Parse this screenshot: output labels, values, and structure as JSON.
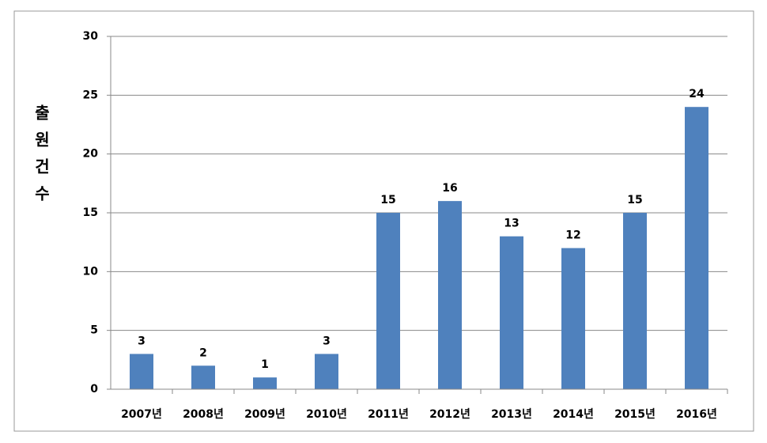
{
  "chart_data": {
    "type": "bar",
    "y_label": "출원건수",
    "categories": [
      "2007년",
      "2008년",
      "2009년",
      "2010년",
      "2011년",
      "2012년",
      "2013년",
      "2014년",
      "2015년",
      "2016년"
    ],
    "values": [
      3,
      2,
      1,
      3,
      15,
      16,
      13,
      12,
      15,
      24
    ],
    "color": "#4f81bd",
    "ylim": [
      0,
      30
    ],
    "yticks": [
      0,
      5,
      10,
      15,
      20,
      25,
      30
    ],
    "grid": true
  }
}
